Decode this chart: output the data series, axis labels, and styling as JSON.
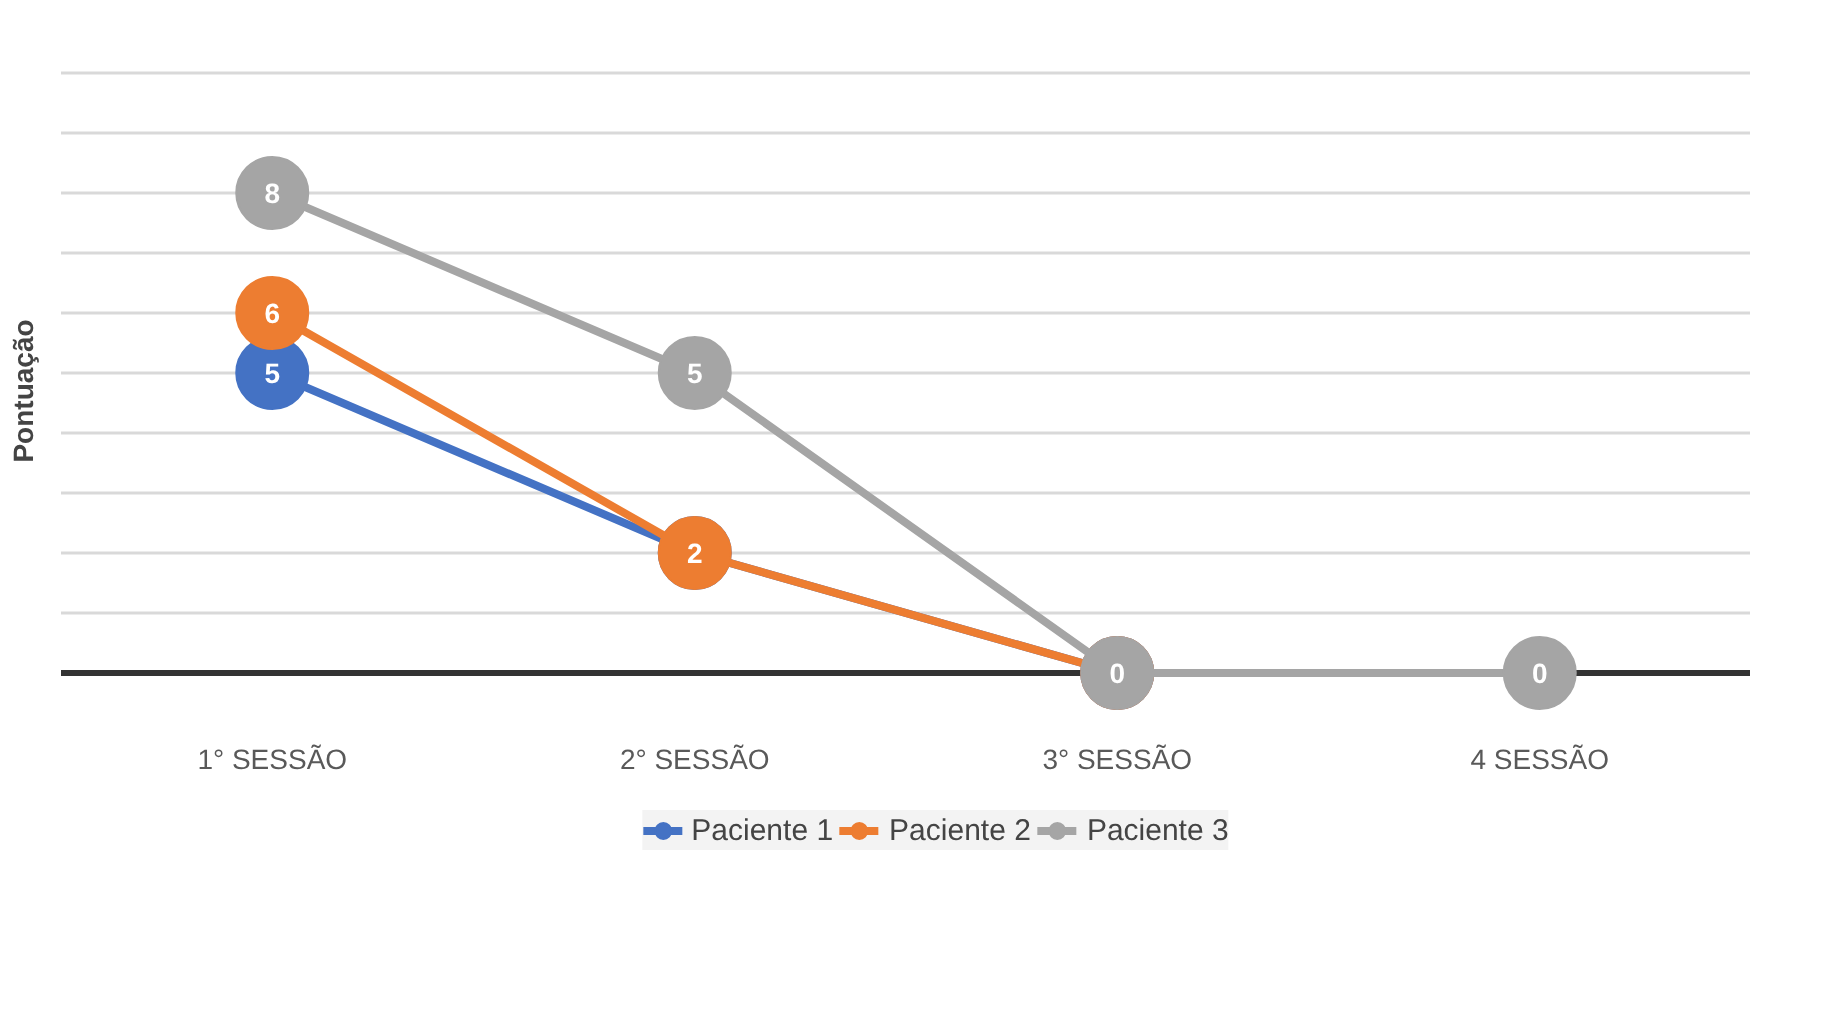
{
  "chart_data": {
    "type": "line",
    "ylabel": "Pontuação",
    "categories": [
      "1° SESSÃO",
      "2° SESSÃO",
      "3° SESSÃO",
      "4 SESSÃO"
    ],
    "series": [
      {
        "name": "Paciente 1",
        "color": "#4472c4",
        "values": [
          5,
          2,
          0,
          null
        ],
        "value_labels": [
          "5",
          null,
          null,
          null
        ]
      },
      {
        "name": "Paciente 2",
        "color": "#ed7d31",
        "values": [
          6,
          2,
          0,
          null
        ],
        "value_labels": [
          "6",
          "2",
          null,
          null
        ]
      },
      {
        "name": "Paciente 3",
        "color": "#a5a5a5",
        "values": [
          8,
          5,
          0,
          0
        ],
        "value_labels": [
          "8",
          "5",
          "0",
          "0"
        ]
      }
    ],
    "yticks": [
      {
        "value": 0,
        "label": null
      },
      {
        "value": 1,
        "label": null
      },
      {
        "value": 2,
        "label": null
      },
      {
        "value": 3,
        "label": null
      },
      {
        "value": 4,
        "label": null
      },
      {
        "value": 5,
        "label": null
      },
      {
        "value": 6,
        "label": null
      },
      {
        "value": 7,
        "label": null
      },
      {
        "value": 8,
        "label": null
      },
      {
        "value": 9,
        "label": null
      },
      {
        "value": 10,
        "label": null
      }
    ],
    "tick_labels": "x",
    "grid": "y",
    "legend": "bottom",
    "marker": "circle",
    "line_style": "solid"
  }
}
